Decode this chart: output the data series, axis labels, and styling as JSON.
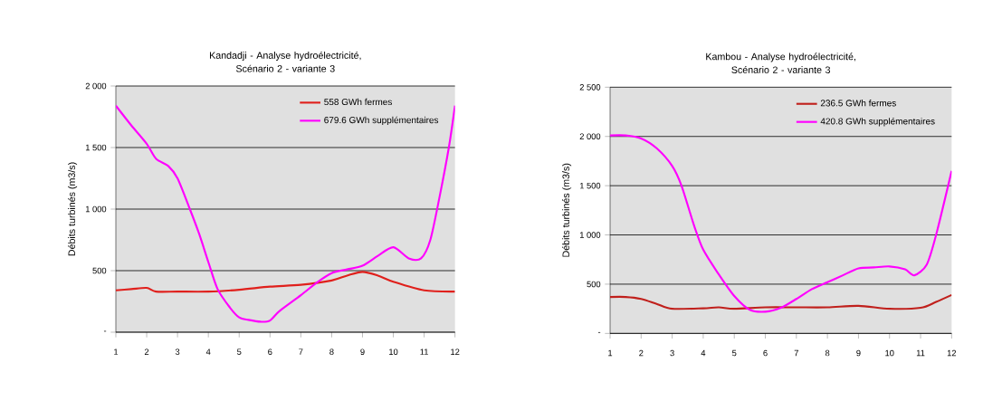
{
  "chart_data": [
    {
      "type": "line",
      "title": "Kandadji - Analyse hydroélectricité, Scénario 2 - variante 3",
      "ylabel": "Débits turbinés (m3/s)",
      "grid": "y",
      "legend": "top right",
      "xlim": [
        1,
        12
      ],
      "xticks": [
        1,
        2,
        3,
        4,
        5,
        6,
        7,
        8,
        9,
        10,
        11,
        12
      ],
      "ylim": [
        0,
        2000
      ],
      "yticks": [
        {
          "value": 0,
          "label": "-"
        },
        500,
        {
          "value": 1000,
          "label": "1 000"
        },
        {
          "value": 1500,
          "label": "1 500"
        },
        {
          "value": 2000,
          "label": "2 000"
        }
      ],
      "series": [
        {
          "name": "558 GWh fermes",
          "color": "#e0201c",
          "x": [
            1,
            1.5,
            2,
            2.3,
            3,
            4,
            5,
            6,
            7,
            8,
            8.5,
            9,
            9.5,
            10,
            11,
            12
          ],
          "values": [
            340,
            350,
            360,
            330,
            330,
            330,
            345,
            370,
            385,
            420,
            460,
            490,
            460,
            410,
            340,
            330
          ]
        },
        {
          "name": "679.6 GWh supplémentaires",
          "color": "#ff00ff",
          "x": [
            1,
            1.5,
            2,
            2.3,
            2.7,
            3,
            3.4,
            3.7,
            4,
            4.3,
            4.7,
            5,
            5.3,
            5.7,
            6,
            6.3,
            7,
            7.5,
            8,
            8.5,
            9,
            9.5,
            10,
            10.5,
            10.9,
            11.2,
            11.5,
            11.8,
            12
          ],
          "values": [
            1840,
            1680,
            1530,
            1410,
            1350,
            1250,
            1000,
            800,
            570,
            350,
            200,
            120,
            100,
            85,
            95,
            170,
            300,
            400,
            480,
            510,
            540,
            620,
            690,
            600,
            600,
            750,
            1100,
            1500,
            1840
          ]
        }
      ]
    },
    {
      "type": "line",
      "title": "Kambou - Analyse hydroélectricité, Scénario 2 - variante 3",
      "ylabel": "Débits turbinés (m3/s)",
      "grid": "y",
      "legend": "top right",
      "xlim": [
        1,
        12
      ],
      "xticks": [
        1,
        2,
        3,
        4,
        5,
        6,
        7,
        8,
        9,
        10,
        11,
        12
      ],
      "ylim": [
        0,
        2500
      ],
      "yticks": [
        {
          "value": 0,
          "label": "-"
        },
        500,
        {
          "value": 1000,
          "label": "1 000"
        },
        {
          "value": 1500,
          "label": "1 500"
        },
        {
          "value": 2000,
          "label": "2 000"
        },
        {
          "value": 2500,
          "label": "2 500"
        }
      ],
      "series": [
        {
          "name": "236.5 GWh fermes",
          "color": "#c0201c",
          "x": [
            1,
            1.5,
            2,
            2.5,
            3,
            4,
            4.5,
            5,
            6,
            7,
            8,
            9,
            10,
            11,
            11.5,
            12
          ],
          "values": [
            370,
            370,
            350,
            300,
            250,
            255,
            265,
            250,
            265,
            265,
            265,
            280,
            250,
            260,
            320,
            390
          ]
        },
        {
          "name": "420.8 GWh supplémentaires",
          "color": "#ff00ff",
          "x": [
            1,
            1.5,
            2,
            2.5,
            3,
            3.3,
            3.7,
            4,
            4.5,
            5,
            5.5,
            6,
            6.5,
            7,
            7.5,
            8,
            8.5,
            9,
            9.5,
            10,
            10.5,
            10.8,
            11.2,
            11.5,
            12
          ],
          "values": [
            2010,
            2010,
            1980,
            1880,
            1700,
            1500,
            1100,
            850,
            600,
            380,
            240,
            220,
            260,
            350,
            450,
            520,
            590,
            660,
            670,
            680,
            650,
            590,
            700,
            1000,
            1650
          ]
        }
      ]
    }
  ]
}
